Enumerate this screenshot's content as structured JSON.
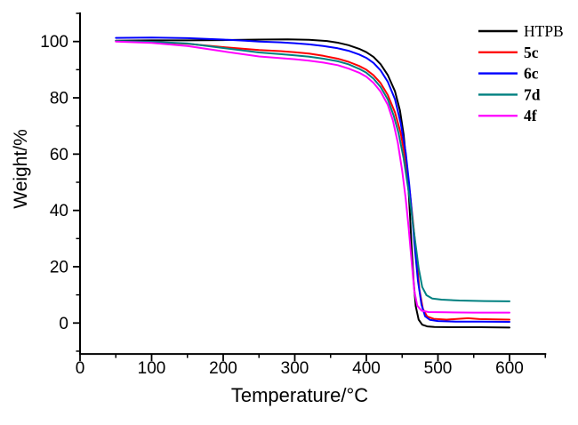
{
  "chart_data": {
    "type": "line",
    "title": "",
    "xlabel": "Temperature/°C",
    "ylabel": "Weight/%",
    "grid": false,
    "legend_position": "top-right-inside",
    "x_axis": {
      "min": 0,
      "max": 650,
      "major_ticks": [
        0,
        100,
        200,
        300,
        400,
        500,
        600
      ],
      "minor_ticks": [
        50,
        150,
        250,
        350,
        450,
        550,
        650
      ]
    },
    "y_axis": {
      "min": -11,
      "max": 110,
      "major_ticks": [
        0,
        20,
        40,
        60,
        80,
        100
      ],
      "minor_ticks": [
        -10,
        10,
        30,
        50,
        70,
        90,
        110
      ]
    },
    "series": [
      {
        "name": "HTPB",
        "color": "#000000",
        "bold_label": false,
        "points": [
          [
            50,
            100.3
          ],
          [
            100,
            100.4
          ],
          [
            150,
            100.4
          ],
          [
            200,
            100.5
          ],
          [
            250,
            100.7
          ],
          [
            290,
            100.8
          ],
          [
            320,
            100.6
          ],
          [
            345,
            100.2
          ],
          [
            360,
            99.6
          ],
          [
            375,
            98.7
          ],
          [
            390,
            97.4
          ],
          [
            400,
            96.2
          ],
          [
            410,
            94.5
          ],
          [
            420,
            91.9
          ],
          [
            430,
            88.1
          ],
          [
            440,
            82.3
          ],
          [
            447,
            75.5
          ],
          [
            452,
            67
          ],
          [
            456,
            57
          ],
          [
            459,
            47
          ],
          [
            461,
            38
          ],
          [
            463,
            28
          ],
          [
            466,
            15
          ],
          [
            469,
            6
          ],
          [
            473,
            1.2
          ],
          [
            478,
            -0.6
          ],
          [
            485,
            -1.2
          ],
          [
            495,
            -1.4
          ],
          [
            520,
            -1.5
          ],
          [
            560,
            -1.5
          ],
          [
            600,
            -1.6
          ]
        ]
      },
      {
        "name": "5c",
        "color": "#ff0000",
        "bold_label": true,
        "points": [
          [
            50,
            100.1
          ],
          [
            100,
            99.8
          ],
          [
            150,
            99.2
          ],
          [
            200,
            98.0
          ],
          [
            250,
            97.0
          ],
          [
            280,
            96.6
          ],
          [
            300,
            96.2
          ],
          [
            320,
            95.7
          ],
          [
            340,
            94.9
          ],
          [
            360,
            93.9
          ],
          [
            375,
            92.8
          ],
          [
            390,
            91.3
          ],
          [
            400,
            90.0
          ],
          [
            410,
            88.0
          ],
          [
            420,
            85.2
          ],
          [
            430,
            81.0
          ],
          [
            440,
            74.8
          ],
          [
            448,
            67.5
          ],
          [
            455,
            57.5
          ],
          [
            461,
            46
          ],
          [
            466,
            34
          ],
          [
            470,
            23
          ],
          [
            474,
            12
          ],
          [
            479,
            5
          ],
          [
            485,
            2.3
          ],
          [
            494,
            1.5
          ],
          [
            512,
            1.2
          ],
          [
            542,
            1.7
          ],
          [
            558,
            1.4
          ],
          [
            600,
            1.2
          ]
        ]
      },
      {
        "name": "6c",
        "color": "#0000ff",
        "bold_label": true,
        "points": [
          [
            50,
            101.3
          ],
          [
            100,
            101.4
          ],
          [
            150,
            101.2
          ],
          [
            200,
            100.7
          ],
          [
            230,
            100.3
          ],
          [
            250,
            100.0
          ],
          [
            280,
            99.7
          ],
          [
            300,
            99.4
          ],
          [
            320,
            99.0
          ],
          [
            340,
            98.4
          ],
          [
            360,
            97.6
          ],
          [
            375,
            96.7
          ],
          [
            390,
            95.4
          ],
          [
            400,
            94.2
          ],
          [
            410,
            92.4
          ],
          [
            420,
            89.7
          ],
          [
            430,
            85.7
          ],
          [
            440,
            79.5
          ],
          [
            448,
            71
          ],
          [
            455,
            60.5
          ],
          [
            460,
            49
          ],
          [
            464,
            38
          ],
          [
            468,
            26
          ],
          [
            472,
            15
          ],
          [
            477,
            6.5
          ],
          [
            482,
            2.4
          ],
          [
            489,
            1.1
          ],
          [
            500,
            0.7
          ],
          [
            525,
            0.5
          ],
          [
            560,
            0.5
          ],
          [
            600,
            0.4
          ]
        ]
      },
      {
        "name": "7d",
        "color": "#008080",
        "bold_label": true,
        "points": [
          [
            50,
            100.2
          ],
          [
            100,
            99.9
          ],
          [
            150,
            99.3
          ],
          [
            200,
            97.7
          ],
          [
            250,
            96.1
          ],
          [
            280,
            95.5
          ],
          [
            300,
            95.1
          ],
          [
            320,
            94.6
          ],
          [
            340,
            93.9
          ],
          [
            360,
            93.0
          ],
          [
            375,
            91.9
          ],
          [
            390,
            90.3
          ],
          [
            400,
            88.9
          ],
          [
            410,
            86.8
          ],
          [
            420,
            83.8
          ],
          [
            430,
            79.4
          ],
          [
            438,
            73.8
          ],
          [
            445,
            67.5
          ],
          [
            452,
            58.5
          ],
          [
            458,
            48.5
          ],
          [
            463,
            39.5
          ],
          [
            468,
            29.5
          ],
          [
            473,
            19.5
          ],
          [
            478,
            12.8
          ],
          [
            484,
            9.9
          ],
          [
            492,
            8.7
          ],
          [
            505,
            8.3
          ],
          [
            530,
            8.0
          ],
          [
            565,
            7.8
          ],
          [
            600,
            7.7
          ]
        ]
      },
      {
        "name": "4f",
        "color": "#ff00ff",
        "bold_label": true,
        "points": [
          [
            50,
            100.0
          ],
          [
            100,
            99.5
          ],
          [
            150,
            98.4
          ],
          [
            200,
            96.5
          ],
          [
            250,
            94.7
          ],
          [
            280,
            94.1
          ],
          [
            300,
            93.7
          ],
          [
            320,
            93.2
          ],
          [
            340,
            92.5
          ],
          [
            360,
            91.6
          ],
          [
            375,
            90.4
          ],
          [
            390,
            88.9
          ],
          [
            400,
            87.5
          ],
          [
            410,
            85.3
          ],
          [
            420,
            82.2
          ],
          [
            430,
            77.5
          ],
          [
            437,
            72
          ],
          [
            444,
            64
          ],
          [
            450,
            54
          ],
          [
            455,
            44
          ],
          [
            459,
            34
          ],
          [
            463,
            22.5
          ],
          [
            467,
            11.5
          ],
          [
            471,
            6.2
          ],
          [
            477,
            4.4
          ],
          [
            487,
            3.9
          ],
          [
            512,
            3.8
          ],
          [
            550,
            3.7
          ],
          [
            600,
            3.7
          ]
        ]
      }
    ]
  }
}
